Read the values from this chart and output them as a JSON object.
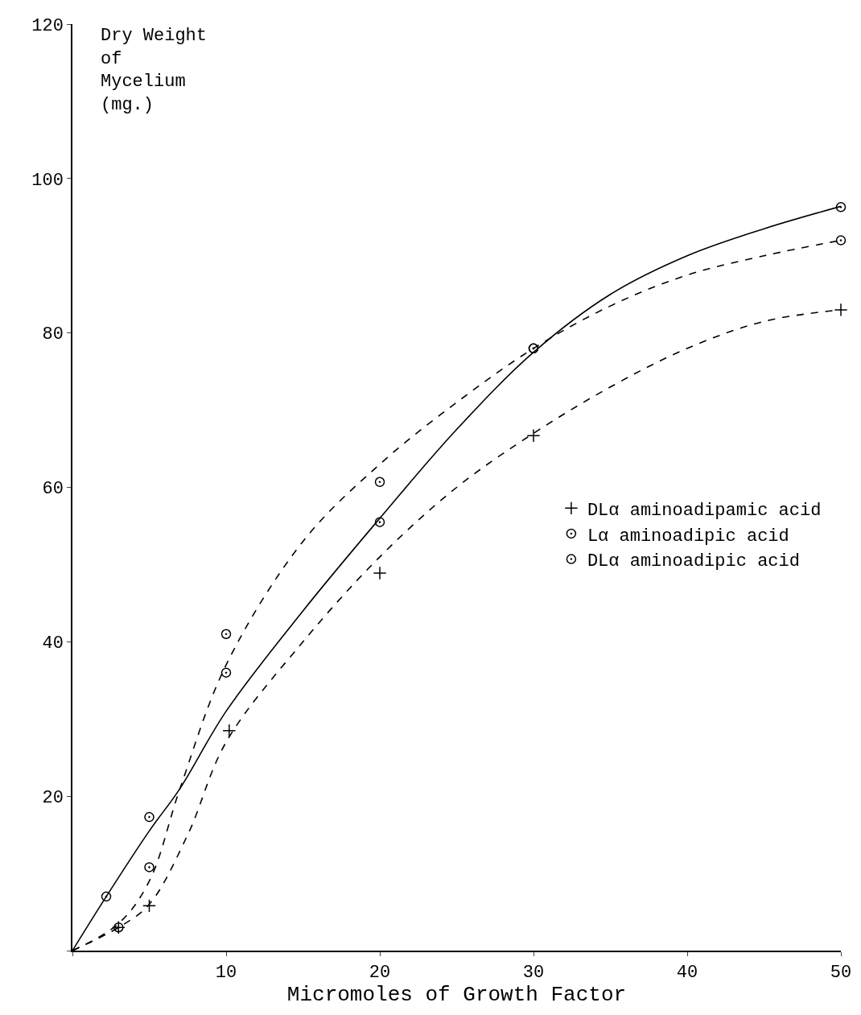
{
  "chart_data": {
    "type": "scatter",
    "xlabel": "Micromoles of Growth Factor",
    "ylabel": "Dry Weight\nof\nMycelium\n(mg.)",
    "xlim": [
      0,
      50
    ],
    "ylim": [
      0,
      120
    ],
    "xticks": [
      {
        "value": 0,
        "label": null
      },
      10,
      20,
      30,
      40,
      50
    ],
    "yticks": [
      {
        "value": 0,
        "label": null
      },
      20,
      40,
      60,
      80,
      100,
      120
    ],
    "grid": false,
    "legend": "right",
    "series": [
      {
        "name": "DLα aminoadipamic acid",
        "color": "#000000",
        "marker": "cross",
        "x": [
          3,
          5,
          10.2,
          20,
          30,
          50
        ],
        "values": [
          3,
          5.8,
          28.5,
          48.9,
          66.7,
          83
        ]
      },
      {
        "name": "Lα aminoadipic acid",
        "color": "#000000",
        "marker": "circle",
        "x": [
          2.2,
          5,
          10,
          20,
          30,
          50
        ],
        "values": [
          7,
          17.3,
          36,
          55.5,
          78,
          96.3
        ]
      },
      {
        "name": "DLα aminoadipic acid",
        "color": "#000000",
        "marker": "circle",
        "x": [
          3,
          5,
          10,
          20,
          30,
          50
        ],
        "values": [
          3,
          10.8,
          41,
          60.7,
          78,
          92
        ]
      },
      {
        "type": "line",
        "color": "#000000",
        "line_style": "dashed",
        "marker": "none",
        "x": [
          0,
          3,
          5,
          7.5,
          10,
          15,
          20,
          25,
          30,
          35,
          40,
          45,
          50
        ],
        "values": [
          0,
          3,
          6,
          15,
          27,
          40,
          51,
          60,
          67,
          73,
          78,
          81.5,
          83
        ]
      },
      {
        "type": "line",
        "color": "#000000",
        "line_style": "solid",
        "marker": "none",
        "x": [
          0,
          2.2,
          5,
          7,
          10,
          15,
          20,
          25,
          30,
          35,
          40,
          45,
          50
        ],
        "values": [
          0,
          7,
          15.5,
          21,
          31,
          44,
          56,
          67.5,
          77.5,
          85,
          90,
          93.5,
          96.4
        ]
      },
      {
        "type": "line",
        "color": "#000000",
        "line_style": "dashed",
        "marker": "none",
        "x": [
          0,
          3,
          5,
          7,
          10,
          15,
          20,
          25,
          30,
          35,
          40,
          45,
          50
        ],
        "values": [
          0,
          3.5,
          9,
          21,
          37,
          53,
          63,
          71,
          78,
          83.5,
          87.5,
          90,
          92
        ]
      }
    ]
  }
}
